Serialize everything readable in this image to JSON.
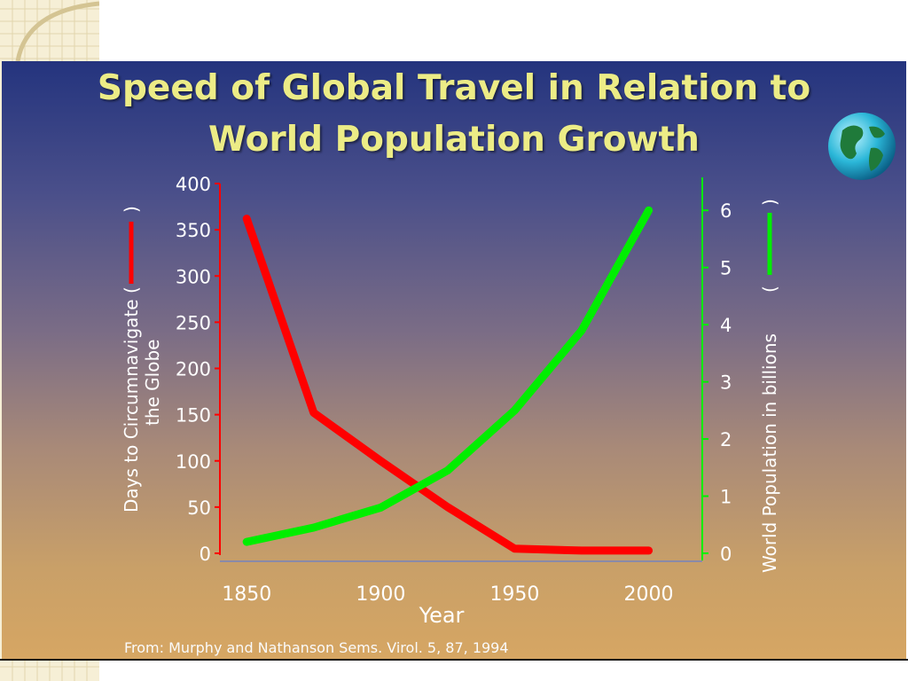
{
  "slide": {
    "title_line1": "Speed of Global Travel in Relation to",
    "title_line2": "World Population Growth",
    "source": "From: Murphy and Nathanson Sems. Virol. 5, 87, 1994",
    "icon": "globe-icon",
    "colors": {
      "title": "#ecec86",
      "days_series": "#ff0000",
      "population_series": "#00ee00"
    }
  },
  "chart_data": {
    "type": "line",
    "title": "",
    "xlabel": "Year",
    "ylabel_left": "Days to Circumnavigate ( ) the Globe",
    "ylabel_left_line1": "Days to Circumnavigate (",
    "ylabel_left_close": ")",
    "ylabel_left_line2": "the Globe",
    "ylabel_right": "World Population in billions ( )",
    "ylabel_right_text": "World Population in billions",
    "ylabel_right_open": "(",
    "ylabel_right_close": ")",
    "xlim": [
      1840,
      2020
    ],
    "ylim_left": [
      0,
      400
    ],
    "ylim_right": [
      0,
      6.5
    ],
    "x_ticks": [
      1850,
      1900,
      1950,
      2000
    ],
    "y_ticks_left": [
      0,
      50,
      100,
      150,
      200,
      250,
      300,
      350,
      400
    ],
    "y_ticks_right": [
      0,
      1,
      2,
      3,
      4,
      5,
      6
    ],
    "grid": false,
    "series": [
      {
        "axis": "left",
        "color": "#ff0000",
        "x": [
          1850,
          1875,
          1900,
          1925,
          1950,
          1975,
          2000
        ],
        "y": [
          362,
          152,
          100,
          50,
          5,
          3,
          3
        ]
      },
      {
        "axis": "right",
        "color": "#00ee00",
        "x": [
          1850,
          1875,
          1900,
          1925,
          1950,
          1975,
          2000
        ],
        "y": [
          0.2,
          0.45,
          0.8,
          1.45,
          2.5,
          3.9,
          6.0
        ]
      }
    ]
  }
}
